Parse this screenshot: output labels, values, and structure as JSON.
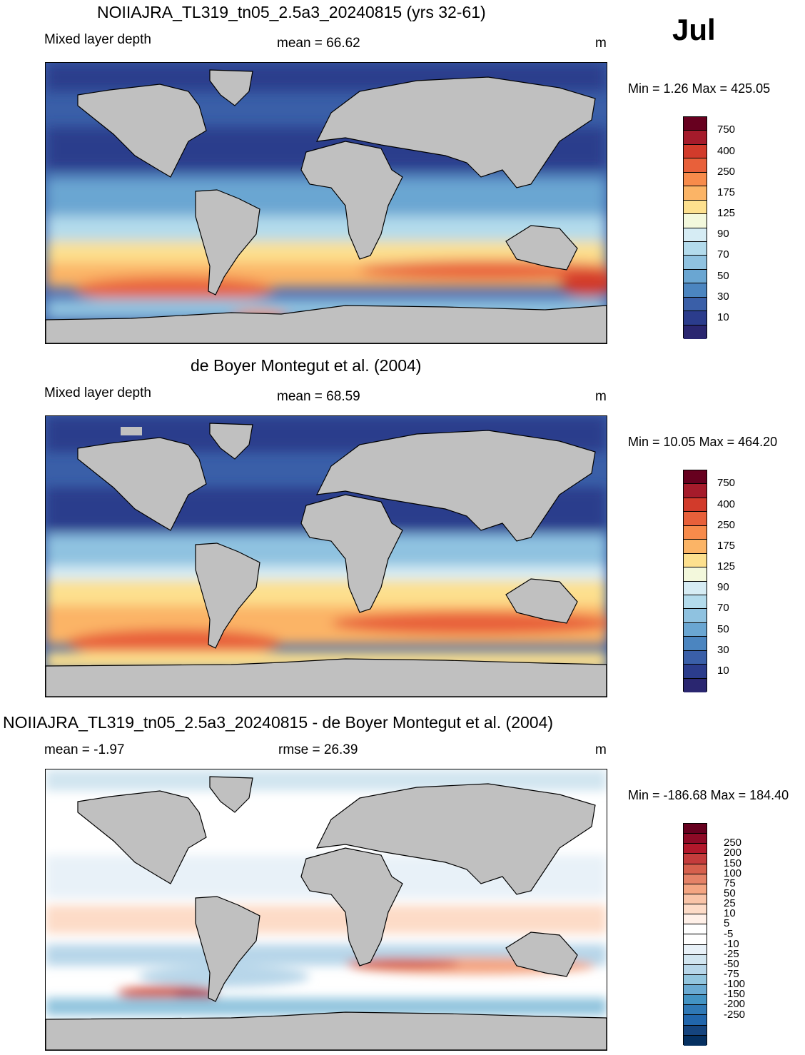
{
  "month": "Jul",
  "units_label": "m",
  "panels": [
    {
      "title": "NOIIAJRA_TL319_tn05_2.5a3_20240815 (yrs 32-61)",
      "left_label": "Mixed layer depth",
      "center_label": "mean =  66.62",
      "units": "m",
      "minmax": "Min =    1.26 Max = 425.05",
      "colorbar": {
        "colors": [
          "#67001f",
          "#a51b2b",
          "#d23b2b",
          "#e8603a",
          "#f78b4b",
          "#fbb466",
          "#fde08e",
          "#f3f8dc",
          "#d6ecf4",
          "#b3dbec",
          "#8fc2e0",
          "#6aa6d2",
          "#4b85c0",
          "#3a5fa8",
          "#2b3c8c",
          "#2a2670"
        ],
        "ticks": [
          "750",
          "400",
          "250",
          "175",
          "125",
          "90",
          "70",
          "50",
          "30",
          "10"
        ]
      }
    },
    {
      "title": "de Boyer Montegut et al. (2004)",
      "left_label": "Mixed layer depth",
      "center_label": "mean =  68.59",
      "units": "m",
      "minmax": "Min =  10.05 Max = 464.20",
      "colorbar": {
        "colors": [
          "#67001f",
          "#a51b2b",
          "#d23b2b",
          "#e8603a",
          "#f78b4b",
          "#fbb466",
          "#fde08e",
          "#f3f8dc",
          "#d6ecf4",
          "#b3dbec",
          "#8fc2e0",
          "#6aa6d2",
          "#4b85c0",
          "#3a5fa8",
          "#2b3c8c",
          "#2a2670"
        ],
        "ticks": [
          "750",
          "400",
          "250",
          "175",
          "125",
          "90",
          "70",
          "50",
          "30",
          "10"
        ]
      }
    },
    {
      "title": "NOIIAJRA_TL319_tn05_2.5a3_20240815 - de Boyer Montegut et al. (2004)",
      "left_label": "mean =  -1.97",
      "center_label": "rmse =  26.39",
      "units": "m",
      "minmax": "Min = -186.68 Max = 184.40",
      "colorbar": {
        "colors": [
          "#67001f",
          "#8e0a26",
          "#b2182b",
          "#c43c3c",
          "#d6604d",
          "#e58267",
          "#f4a582",
          "#f9c4a8",
          "#fddbc7",
          "#fff0e8",
          "#ffffff",
          "#ffffff",
          "#e8f1f8",
          "#d1e5f0",
          "#b7d6e9",
          "#92c5de",
          "#6aaad2",
          "#4393c3",
          "#2f78b5",
          "#2166ac",
          "#15447e",
          "#053061"
        ],
        "ticks": [
          "250",
          "200",
          "150",
          "100",
          "75",
          "50",
          "25",
          "10",
          "5",
          "-5",
          "-10",
          "-25",
          "-50",
          "-75",
          "-100",
          "-150",
          "-200",
          "-250"
        ]
      }
    }
  ]
}
